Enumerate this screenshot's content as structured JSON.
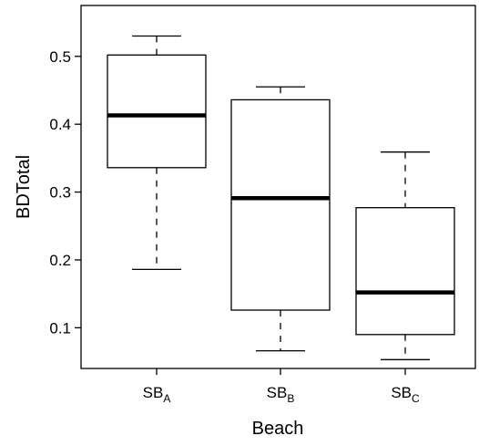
{
  "chart_data": {
    "type": "box",
    "xlabel": "Beach",
    "ylabel": "BDTotal",
    "ylim": [
      0.04,
      0.575
    ],
    "yticks": [
      {
        "value": 0.1,
        "label": "0.1"
      },
      {
        "value": 0.2,
        "label": "0.2"
      },
      {
        "value": 0.3,
        "label": "0.3"
      },
      {
        "value": 0.4,
        "label": "0.4"
      },
      {
        "value": 0.5,
        "label": "0.5"
      }
    ],
    "categories": [
      {
        "base": "SB",
        "sub": "A"
      },
      {
        "base": "SB",
        "sub": "B"
      },
      {
        "base": "SB",
        "sub": "C"
      }
    ],
    "boxes": [
      {
        "min": 0.186,
        "q1": 0.336,
        "median": 0.413,
        "q3": 0.502,
        "max": 0.53
      },
      {
        "min": 0.066,
        "q1": 0.126,
        "median": 0.291,
        "q3": 0.436,
        "max": 0.455
      },
      {
        "min": 0.053,
        "q1": 0.09,
        "median": 0.152,
        "q3": 0.277,
        "max": 0.359
      }
    ],
    "grid": false,
    "legend": "none"
  }
}
